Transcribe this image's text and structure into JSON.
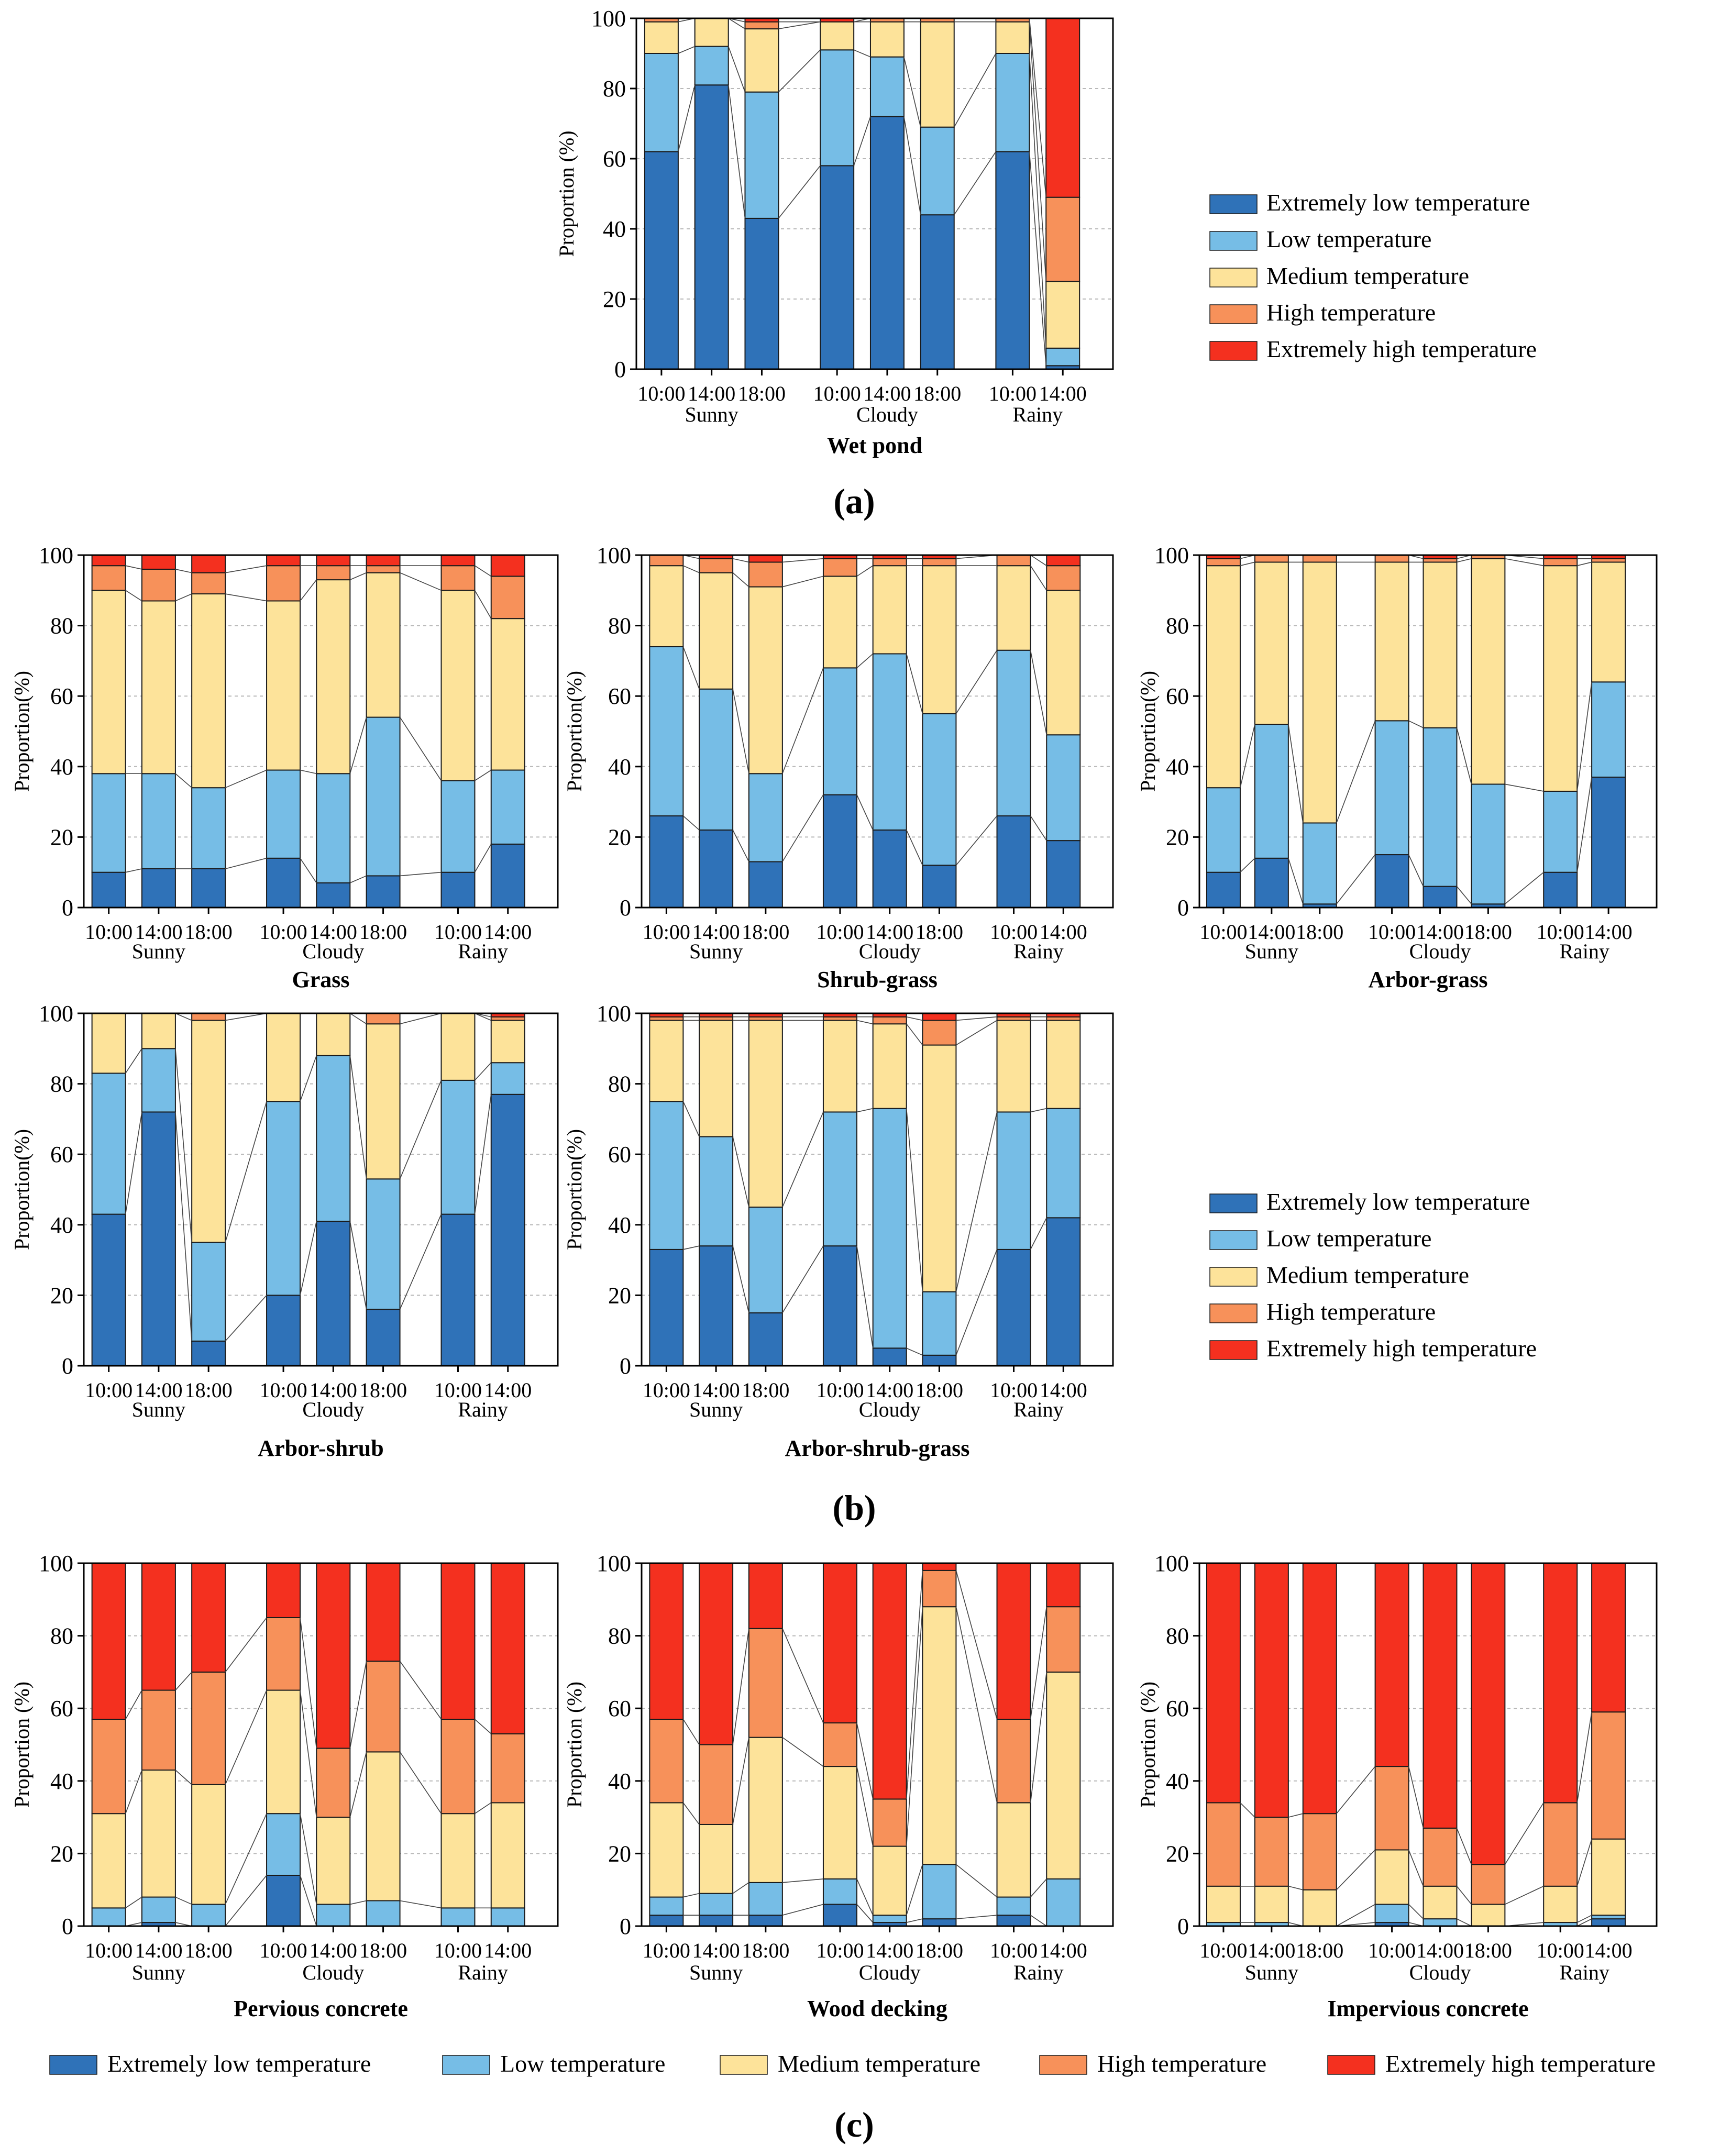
{
  "colors": {
    "extremely_low": "#2f72b8",
    "low": "#76bde6",
    "medium": "#fde39a",
    "high": "#f7915a",
    "extremely_high": "#f4301f"
  },
  "legend": [
    "Extremely low temperature",
    "Low temperature",
    "Medium temperature",
    "High temperature",
    "Extremely high temperature"
  ],
  "panel_labels": {
    "a": "(a)",
    "b": "(b)",
    "c": "(c)"
  },
  "chart_data": [
    {
      "type": "bar",
      "stacked": true,
      "title": "Wet pond",
      "ylabel": "Proportion (%)",
      "categories": [
        "10:00",
        "14:00",
        "18:00",
        "10:00",
        "14:00",
        "18:00",
        "10:00",
        "14:00"
      ],
      "groups": [
        "Sunny",
        "Cloudy",
        "Rainy"
      ],
      "yticks": [
        "0",
        "20",
        "40",
        "60",
        "80",
        "100"
      ],
      "ylim": [
        0,
        100
      ],
      "series": [
        {
          "name": "Extremely low temperature",
          "values": [
            62,
            81,
            43,
            58,
            72,
            44,
            62,
            1
          ]
        },
        {
          "name": "Low temperature",
          "values": [
            28,
            11,
            36,
            33,
            17,
            25,
            28,
            5
          ]
        },
        {
          "name": "Medium temperature",
          "values": [
            9,
            8,
            18,
            8,
            10,
            30,
            9,
            19
          ]
        },
        {
          "name": "High temperature",
          "values": [
            1,
            0,
            2,
            0,
            1,
            1,
            1,
            24
          ]
        },
        {
          "name": "Extremely high temperature",
          "values": [
            0,
            0,
            1,
            1,
            0,
            0,
            0,
            51
          ]
        }
      ]
    },
    {
      "type": "bar",
      "stacked": true,
      "title": "Grass",
      "ylabel": "Proportion(%)",
      "categories": [
        "10:00",
        "14:00",
        "18:00",
        "10:00",
        "14:00",
        "18:00",
        "10:00",
        "14:00"
      ],
      "groups": [
        "Sunny",
        "Cloudy",
        "Rainy"
      ],
      "yticks": [
        "0",
        "20",
        "40",
        "60",
        "80",
        "100"
      ],
      "ylim": [
        0,
        100
      ],
      "series": [
        {
          "name": "Extremely low temperature",
          "values": [
            10,
            11,
            11,
            14,
            7,
            9,
            10,
            18
          ]
        },
        {
          "name": "Low temperature",
          "values": [
            28,
            27,
            23,
            25,
            31,
            45,
            26,
            21
          ]
        },
        {
          "name": "Medium temperature",
          "values": [
            52,
            49,
            55,
            48,
            55,
            41,
            54,
            43
          ]
        },
        {
          "name": "High temperature",
          "values": [
            7,
            9,
            6,
            10,
            4,
            2,
            7,
            12
          ]
        },
        {
          "name": "Extremely high temperature",
          "values": [
            3,
            4,
            5,
            3,
            3,
            3,
            3,
            6
          ]
        }
      ]
    },
    {
      "type": "bar",
      "stacked": true,
      "title": "Shrub-grass",
      "ylabel": "Proportion(%)",
      "categories": [
        "10:00",
        "14:00",
        "18:00",
        "10:00",
        "14:00",
        "18:00",
        "10:00",
        "14:00"
      ],
      "groups": [
        "Sunny",
        "Cloudy",
        "Rainy"
      ],
      "yticks": [
        "0",
        "20",
        "40",
        "60",
        "80",
        "100"
      ],
      "ylim": [
        0,
        100
      ],
      "series": [
        {
          "name": "Extremely low temperature",
          "values": [
            26,
            22,
            13,
            32,
            22,
            12,
            26,
            19
          ]
        },
        {
          "name": "Low temperature",
          "values": [
            48,
            40,
            25,
            36,
            50,
            43,
            47,
            30
          ]
        },
        {
          "name": "Medium temperature",
          "values": [
            23,
            33,
            53,
            26,
            25,
            42,
            24,
            41
          ]
        },
        {
          "name": "High temperature",
          "values": [
            3,
            4,
            7,
            5,
            2,
            2,
            3,
            7
          ]
        },
        {
          "name": "Extremely high temperature",
          "values": [
            0,
            1,
            2,
            1,
            1,
            1,
            0,
            3
          ]
        }
      ]
    },
    {
      "type": "bar",
      "stacked": true,
      "title": "Arbor-grass",
      "ylabel": "Proportion(%)",
      "categories": [
        "10:00",
        "14:00",
        "18:00",
        "10:00",
        "14:00",
        "18:00",
        "10:00",
        "14:00"
      ],
      "groups": [
        "Sunny",
        "Cloudy",
        "Rainy"
      ],
      "yticks": [
        "0",
        "20",
        "40",
        "60",
        "80",
        "100"
      ],
      "ylim": [
        0,
        100
      ],
      "series": [
        {
          "name": "Extremely low temperature",
          "values": [
            10,
            14,
            1,
            15,
            6,
            1,
            10,
            37
          ]
        },
        {
          "name": "Low temperature",
          "values": [
            24,
            38,
            23,
            38,
            45,
            34,
            23,
            27
          ]
        },
        {
          "name": "Medium temperature",
          "values": [
            63,
            46,
            74,
            45,
            47,
            64,
            64,
            34
          ]
        },
        {
          "name": "High temperature",
          "values": [
            2,
            2,
            2,
            2,
            1,
            1,
            2,
            1
          ]
        },
        {
          "name": "Extremely high temperature",
          "values": [
            1,
            0,
            0,
            0,
            1,
            0,
            1,
            1
          ]
        }
      ]
    },
    {
      "type": "bar",
      "stacked": true,
      "title": "Arbor-shrub",
      "ylabel": "Proportion(%)",
      "categories": [
        "10:00",
        "14:00",
        "18:00",
        "10:00",
        "14:00",
        "18:00",
        "10:00",
        "14:00"
      ],
      "groups": [
        "Sunny",
        "Cloudy",
        "Rainy"
      ],
      "yticks": [
        "0",
        "20",
        "40",
        "60",
        "80",
        "100"
      ],
      "ylim": [
        0,
        100
      ],
      "series": [
        {
          "name": "Extremely low temperature",
          "values": [
            43,
            72,
            7,
            20,
            41,
            16,
            43,
            77
          ]
        },
        {
          "name": "Low temperature",
          "values": [
            40,
            18,
            28,
            55,
            47,
            37,
            38,
            9
          ]
        },
        {
          "name": "Medium temperature",
          "values": [
            17,
            10,
            63,
            25,
            12,
            44,
            19,
            12
          ]
        },
        {
          "name": "High temperature",
          "values": [
            0,
            0,
            2,
            0,
            0,
            3,
            0,
            1
          ]
        },
        {
          "name": "Extremely high temperature",
          "values": [
            0,
            0,
            0,
            0,
            0,
            0,
            0,
            1
          ]
        }
      ]
    },
    {
      "type": "bar",
      "stacked": true,
      "title": "Arbor-shrub-grass",
      "ylabel": "Proportion(%)",
      "categories": [
        "10:00",
        "14:00",
        "18:00",
        "10:00",
        "14:00",
        "18:00",
        "10:00",
        "14:00"
      ],
      "groups": [
        "Sunny",
        "Cloudy",
        "Rainy"
      ],
      "yticks": [
        "0",
        "20",
        "40",
        "60",
        "80",
        "100"
      ],
      "ylim": [
        0,
        100
      ],
      "series": [
        {
          "name": "Extremely low temperature",
          "values": [
            33,
            34,
            15,
            34,
            5,
            3,
            33,
            42
          ]
        },
        {
          "name": "Low temperature",
          "values": [
            42,
            31,
            30,
            38,
            68,
            18,
            39,
            31
          ]
        },
        {
          "name": "Medium temperature",
          "values": [
            23,
            33,
            53,
            26,
            24,
            70,
            26,
            25
          ]
        },
        {
          "name": "High temperature",
          "values": [
            1,
            1,
            1,
            1,
            2,
            7,
            1,
            1
          ]
        },
        {
          "name": "Extremely high temperature",
          "values": [
            1,
            1,
            1,
            1,
            1,
            2,
            1,
            1
          ]
        }
      ]
    },
    {
      "type": "bar",
      "stacked": true,
      "title": "Pervious concrete",
      "ylabel": "Proportion (%)",
      "categories": [
        "10:00",
        "14:00",
        "18:00",
        "10:00",
        "14:00",
        "18:00",
        "10:00",
        "14:00"
      ],
      "groups": [
        "Sunny",
        "Cloudy",
        "Rainy"
      ],
      "yticks": [
        "0",
        "20",
        "40",
        "60",
        "80",
        "100"
      ],
      "ylim": [
        0,
        100
      ],
      "series": [
        {
          "name": "Extremely low temperature",
          "values": [
            0,
            1,
            0,
            14,
            0,
            0,
            0,
            0
          ]
        },
        {
          "name": "Low temperature",
          "values": [
            5,
            7,
            6,
            17,
            6,
            7,
            5,
            5
          ]
        },
        {
          "name": "Medium temperature",
          "values": [
            26,
            35,
            33,
            34,
            24,
            41,
            26,
            29
          ]
        },
        {
          "name": "High temperature",
          "values": [
            26,
            22,
            31,
            20,
            19,
            25,
            26,
            19
          ]
        },
        {
          "name": "Extremely high temperature",
          "values": [
            43,
            35,
            30,
            15,
            51,
            27,
            43,
            47
          ]
        }
      ]
    },
    {
      "type": "bar",
      "stacked": true,
      "title": "Wood decking",
      "ylabel": "Proportion (%)",
      "categories": [
        "10:00",
        "14:00",
        "18:00",
        "10:00",
        "14:00",
        "18:00",
        "10:00",
        "14:00"
      ],
      "groups": [
        "Sunny",
        "Cloudy",
        "Rainy"
      ],
      "yticks": [
        "0",
        "20",
        "40",
        "60",
        "80",
        "100"
      ],
      "ylim": [
        0,
        100
      ],
      "series": [
        {
          "name": "Extremely low temperature",
          "values": [
            3,
            3,
            3,
            6,
            1,
            2,
            3,
            0
          ]
        },
        {
          "name": "Low temperature",
          "values": [
            5,
            6,
            9,
            7,
            2,
            15,
            5,
            13
          ]
        },
        {
          "name": "Medium temperature",
          "values": [
            26,
            19,
            40,
            31,
            19,
            71,
            26,
            57
          ]
        },
        {
          "name": "High temperature",
          "values": [
            23,
            22,
            30,
            12,
            13,
            10,
            23,
            18
          ]
        },
        {
          "name": "Extremely high temperature",
          "values": [
            43,
            50,
            18,
            44,
            65,
            2,
            43,
            12
          ]
        }
      ]
    },
    {
      "type": "bar",
      "stacked": true,
      "title": "Impervious concrete",
      "ylabel": "Proportion (%)",
      "categories": [
        "10:00",
        "14:00",
        "18:00",
        "10:00",
        "14:00",
        "18:00",
        "10:00",
        "14:00"
      ],
      "groups": [
        "Sunny",
        "Cloudy",
        "Rainy"
      ],
      "yticks": [
        "0",
        "20",
        "40",
        "60",
        "80",
        "100"
      ],
      "ylim": [
        0,
        100
      ],
      "series": [
        {
          "name": "Extremely low temperature",
          "values": [
            0,
            0,
            0,
            1,
            0,
            0,
            0,
            2
          ]
        },
        {
          "name": "Low temperature",
          "values": [
            1,
            1,
            0,
            5,
            2,
            0,
            1,
            1
          ]
        },
        {
          "name": "Medium temperature",
          "values": [
            10,
            10,
            10,
            15,
            9,
            6,
            10,
            21
          ]
        },
        {
          "name": "High temperature",
          "values": [
            23,
            19,
            21,
            23,
            16,
            11,
            23,
            35
          ]
        },
        {
          "name": "Extremely high temperature",
          "values": [
            66,
            70,
            69,
            56,
            73,
            83,
            66,
            41
          ]
        }
      ]
    }
  ]
}
